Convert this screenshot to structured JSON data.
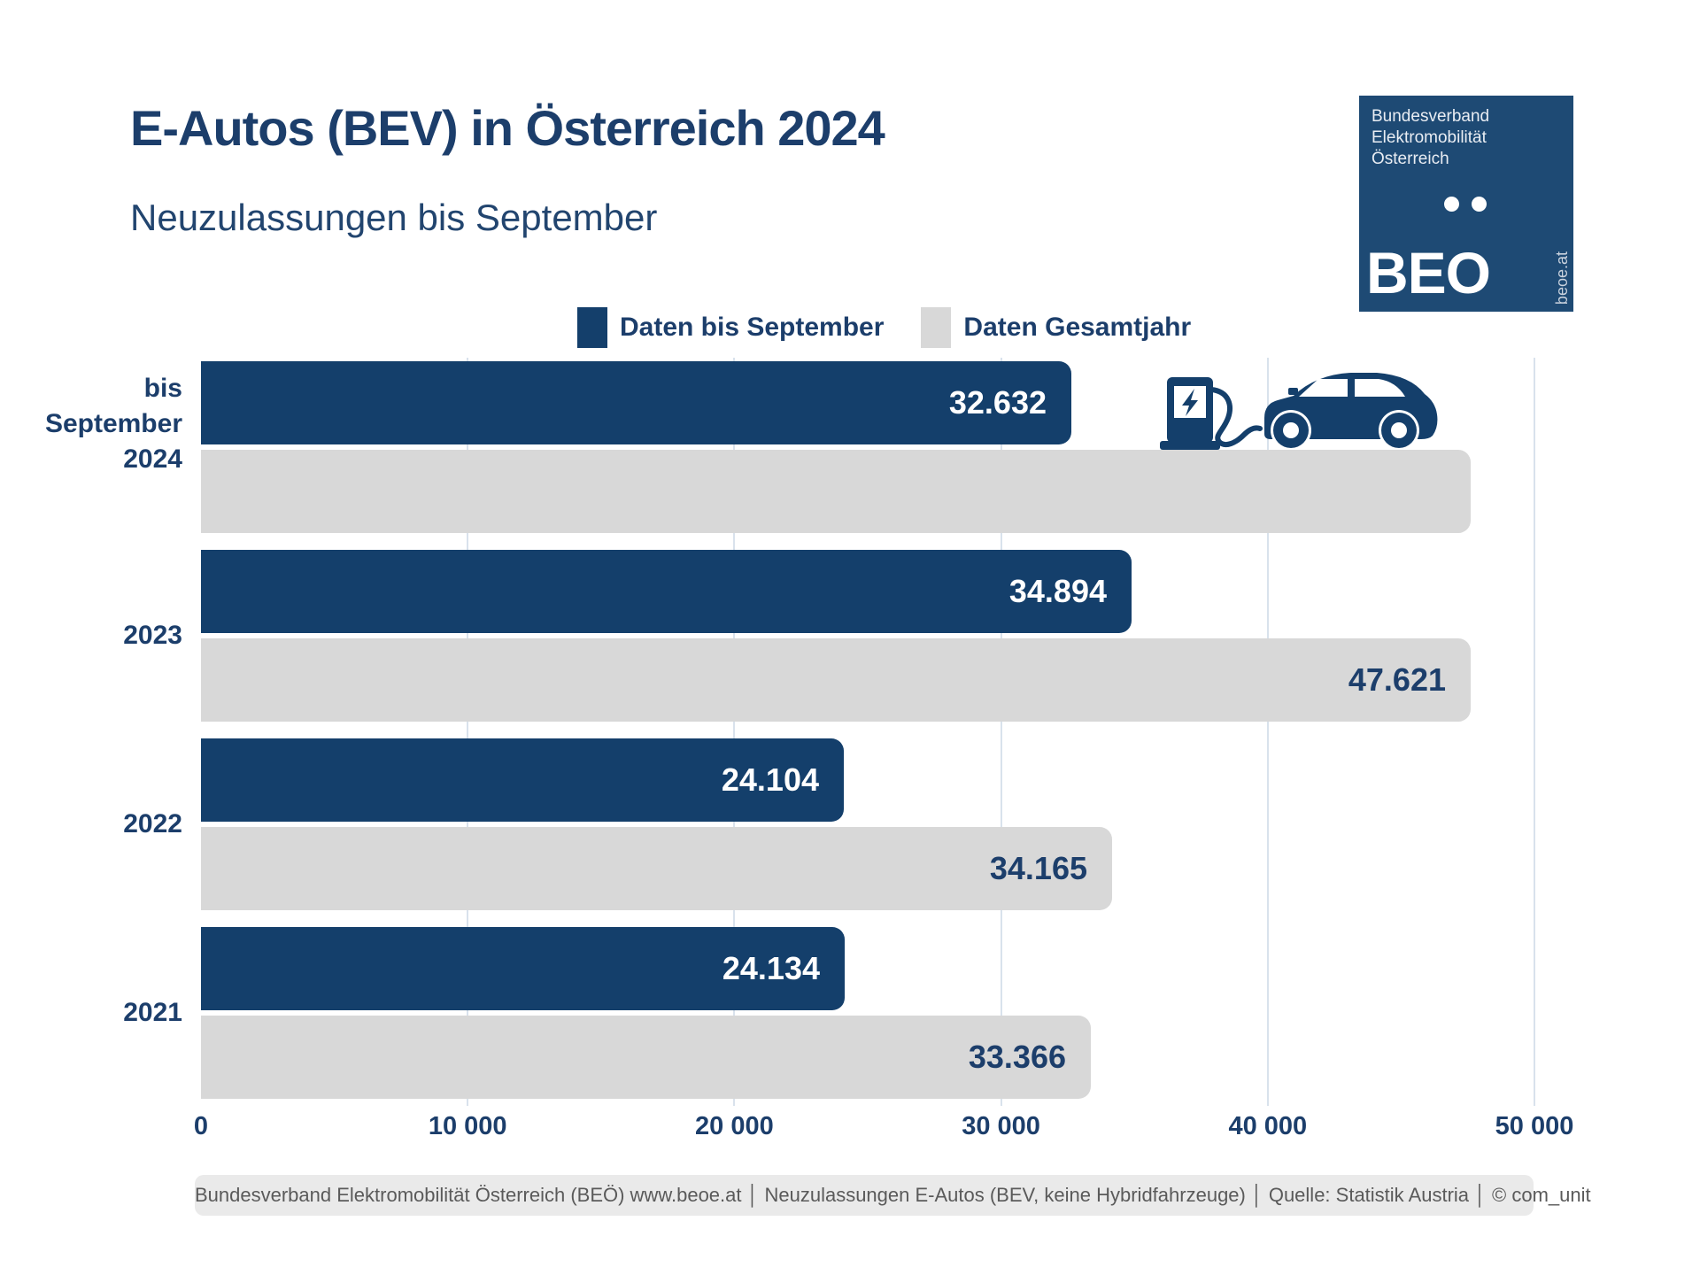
{
  "title": "E-Autos (BEV) in Österreich 2024",
  "subtitle": "Neuzulassungen bis September",
  "logo": {
    "line1": "Bundesverband",
    "line2": "Elektromobilität",
    "line3": "Österreich",
    "acronym": "BEO",
    "url": "beoe.at"
  },
  "legend": [
    {
      "label": "Daten bis September",
      "color": "#143F6B"
    },
    {
      "label": "Daten Gesamtjahr",
      "color": "#D8D8D8"
    }
  ],
  "colors": {
    "bar_navy": "#143F6B",
    "bar_gray": "#D8D8D8",
    "text_navy": "#1C3E6B",
    "gridline": "#D9E2EC",
    "logo_bg": "#1E4A74",
    "footer_bg": "#EAEAEA",
    "footer_text": "#5A5A5A"
  },
  "chart_data": {
    "type": "bar",
    "orientation": "horizontal",
    "title": "E-Autos (BEV) in Österreich 2024 — Neuzulassungen bis September",
    "categories": [
      "bis September\n2024",
      "2023",
      "2022",
      "2021"
    ],
    "series": [
      {
        "name": "Daten bis September",
        "values": [
          32632,
          34894,
          24104,
          24134
        ],
        "labels": [
          "32.632",
          "34.894",
          "24.104",
          "24.134"
        ]
      },
      {
        "name": "Daten Gesamtjahr",
        "values": [
          47600,
          47621,
          34165,
          33366
        ],
        "labels": [
          "",
          "47.621",
          "34.165",
          "33.366"
        ],
        "note": "2024 full-year bar shown without data label"
      }
    ],
    "xlim": [
      0,
      50000
    ],
    "x_ticks": [
      "0",
      "10 000",
      "20 000",
      "30 000",
      "40 000",
      "50 000"
    ],
    "grid": "vertical",
    "legend_position": "top"
  },
  "footer": "Bundesverband Elektromobilität Österreich (BEÖ) www.beoe.at │ Neuzulassungen E-Autos (BEV, keine Hybridfahrzeuge) │ Quelle: Statistik Austria │ © com_unit"
}
